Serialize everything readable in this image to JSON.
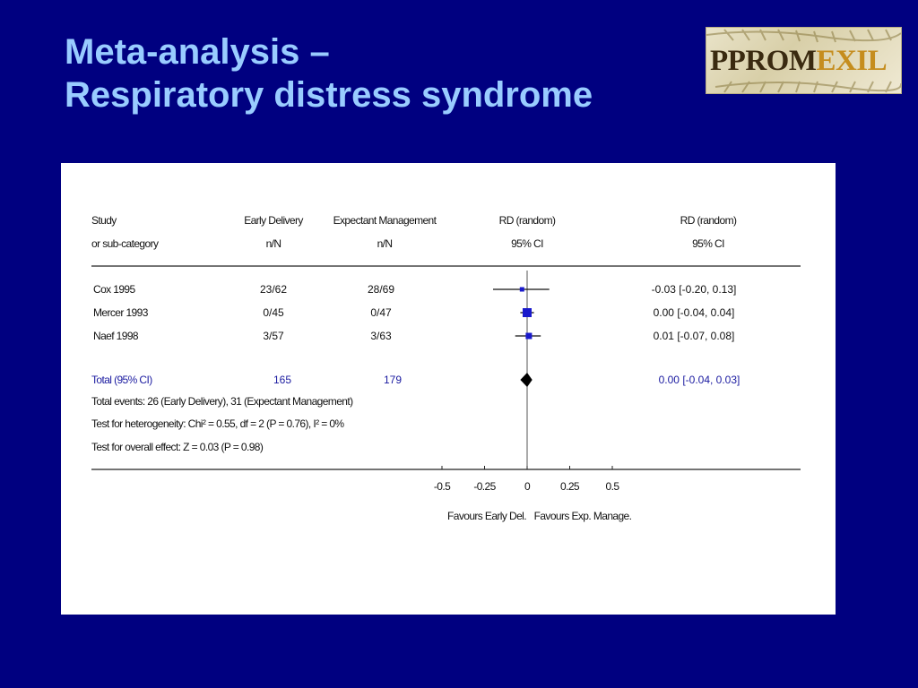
{
  "slide": {
    "title_line1": "Meta-analysis –",
    "title_line2": "Respiratory distress syndrome",
    "logo_text_dark": "PPROM",
    "logo_text_gold": "EXIL"
  },
  "chart_data": {
    "type": "forest",
    "headers": {
      "study": [
        "Study",
        "or sub-category"
      ],
      "early": [
        "Early Delivery",
        "n/N"
      ],
      "expectant": [
        "Expectant Management",
        "n/N"
      ],
      "rd_plot": [
        "RD (random)",
        "95% CI"
      ],
      "rd_text": [
        "RD (random)",
        "95% CI"
      ]
    },
    "studies": [
      {
        "name": "Cox 1995",
        "early": "23/62",
        "expectant": "28/69",
        "rd": -0.03,
        "ci": [
          -0.2,
          0.13
        ],
        "rd_text": "-0.03 [-0.20, 0.13]"
      },
      {
        "name": "Mercer 1993",
        "early": "0/45",
        "expectant": "0/47",
        "rd": 0.0,
        "ci": [
          -0.04,
          0.04
        ],
        "rd_text": "0.00 [-0.04, 0.04]"
      },
      {
        "name": "Naef 1998",
        "early": "3/57",
        "expectant": "3/63",
        "rd": 0.01,
        "ci": [
          -0.07,
          0.08
        ],
        "rd_text": "0.01 [-0.07, 0.08]"
      }
    ],
    "total": {
      "name": "Total (95% CI)",
      "early_n": "165",
      "expectant_n": "179",
      "rd": 0.0,
      "ci": [
        -0.04,
        0.03
      ],
      "rd_text": "0.00 [-0.04, 0.03]"
    },
    "footnotes": [
      "Total events: 26 (Early Delivery), 31 (Expectant Management)",
      "Test for heterogeneity: Chi² = 0.55, df = 2 (P = 0.76), I² = 0%",
      "Test for overall effect: Z = 0.03 (P = 0.98)"
    ],
    "x_ticks": [
      -0.5,
      -0.25,
      0,
      0.25,
      0.5
    ],
    "x_tick_labels": [
      "-0.5",
      "-0.25",
      "0",
      "0.25",
      "0.5"
    ],
    "xlim": [
      -0.5,
      0.5
    ],
    "favours_left": "Favours Early Del.",
    "favours_right": "Favours Exp. Manage.",
    "marker_color": "#1a1acc"
  }
}
